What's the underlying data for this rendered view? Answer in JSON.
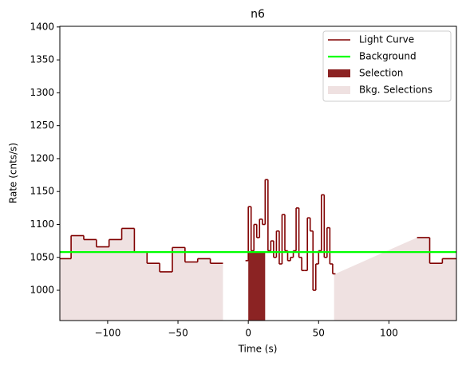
{
  "chart_data": {
    "type": "step",
    "title": "n6",
    "xlabel": "Time (s)",
    "ylabel": "Rate (cnts/s)",
    "xlim": [
      -134,
      148
    ],
    "ylim": [
      954,
      1401
    ],
    "xticks": [
      -100,
      -50,
      0,
      50,
      100
    ],
    "yticks": [
      1000,
      1050,
      1100,
      1150,
      1200,
      1250,
      1300,
      1350,
      1400
    ],
    "legend": "upper right",
    "light_curve": {
      "name": "Light Curve",
      "color": "#800000",
      "bins": [
        -134,
        -126,
        -117,
        -108,
        -99,
        -90,
        -81,
        -72,
        -63,
        -54,
        -45,
        -36,
        -27,
        -18,
        -2,
        0,
        2,
        4,
        6,
        8,
        10,
        12,
        14,
        16,
        18,
        20,
        22,
        24,
        26,
        28,
        30,
        32,
        34,
        36,
        38,
        40,
        42,
        44,
        46,
        48,
        50,
        52,
        54,
        56,
        58,
        60,
        62,
        120,
        129,
        138,
        148
      ],
      "values": [
        1048,
        1083,
        1077,
        1066,
        1077,
        1094,
        1058,
        1041,
        1028,
        1065,
        1043,
        1048,
        1041,
        null,
        1045,
        1127,
        1060,
        1100,
        1080,
        1108,
        1100,
        1168,
        1060,
        1075,
        1050,
        1090,
        1040,
        1115,
        1060,
        1045,
        1050,
        1060,
        1125,
        1050,
        1030,
        1030,
        1110,
        1090,
        1000,
        1040,
        1060,
        1145,
        1050,
        1095,
        1040,
        1025,
        null,
        1080,
        1041,
        1048
      ]
    },
    "background": {
      "name": "Background",
      "color": "#00ff00",
      "value": 1058
    },
    "selection": {
      "name": "Selection",
      "color": "#8b2323",
      "range": [
        0,
        12
      ]
    },
    "bkg_selections": {
      "name": "Bkg. Selections",
      "color": "#efe1e1",
      "ranges": [
        [
          -134,
          -18
        ],
        [
          61,
          148
        ]
      ]
    }
  }
}
